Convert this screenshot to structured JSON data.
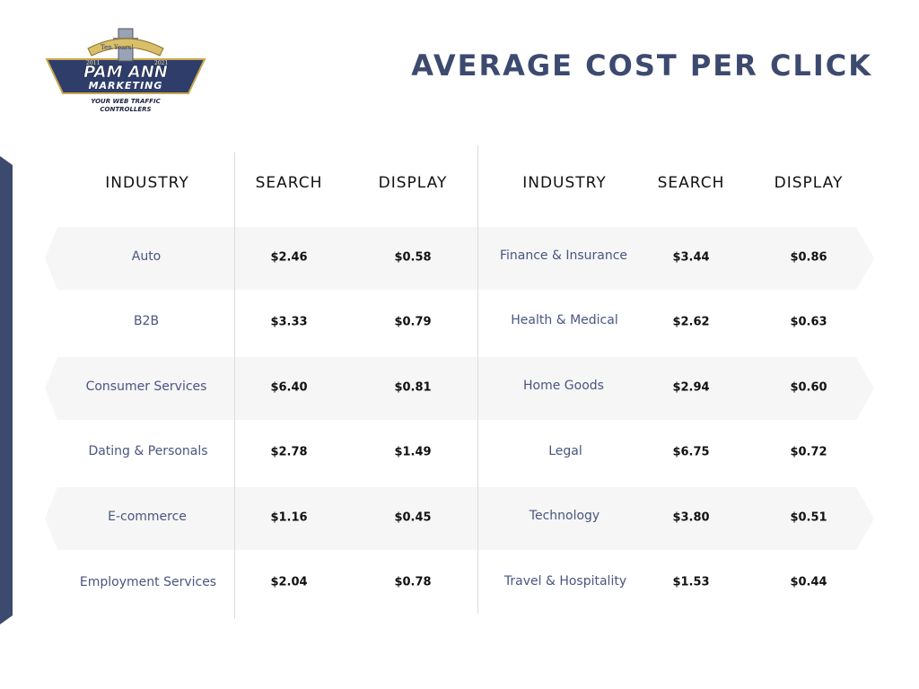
{
  "logo": {
    "top_arc": "Ten Years!",
    "year_left": "2011",
    "year_right": "2021",
    "line1": "PAM ANN",
    "line2": "MARKETING",
    "tagline1": "YOUR WEB TRAFFIC",
    "tagline2": "CONTROLLERS"
  },
  "title": "AVERAGE COST PER CLICK",
  "headers": {
    "industry": "INDUSTRY",
    "search": "SEARCH",
    "display": "DISPLAY"
  },
  "left_table": [
    {
      "industry": "Auto",
      "search": "$2.46",
      "display": "$0.58"
    },
    {
      "industry": "B2B",
      "search": "$3.33",
      "display": "$0.79"
    },
    {
      "industry": "Consumer Services",
      "search": "$6.40",
      "display": "$0.81"
    },
    {
      "industry": "Dating & Personals",
      "search": "$2.78",
      "display": "$1.49"
    },
    {
      "industry": "E-commerce",
      "search": "$1.16",
      "display": "$0.45"
    },
    {
      "industry": "Employment Services",
      "search": "$2.04",
      "display": "$0.78"
    }
  ],
  "right_table": [
    {
      "industry": "Finance & Insurance",
      "search": "$3.44",
      "display": "$0.86"
    },
    {
      "industry": "Health & Medical",
      "search": "$2.62",
      "display": "$0.63"
    },
    {
      "industry": "Home Goods",
      "search": "$2.94",
      "display": "$0.60"
    },
    {
      "industry": "Legal",
      "search": "$6.75",
      "display": "$0.72"
    },
    {
      "industry": "Technology",
      "search": "$3.80",
      "display": "$0.51"
    },
    {
      "industry": "Travel & Hospitality",
      "search": "$1.53",
      "display": "$0.44"
    }
  ],
  "colors": {
    "navy": "#3d4a6f",
    "band": "#f6f6f6",
    "industry_text": "#4a5580"
  }
}
